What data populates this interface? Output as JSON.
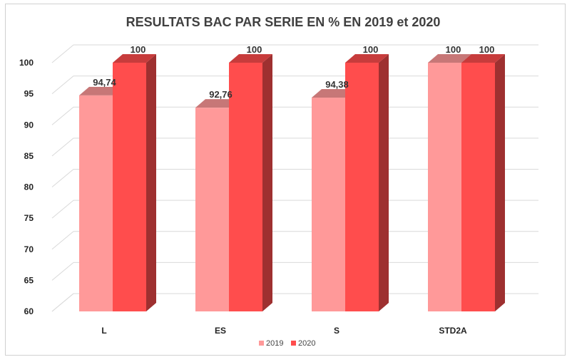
{
  "chart_data": {
    "type": "bar",
    "title": "RESULTATS BAC PAR SERIE EN % EN 2019 et 2020",
    "categories": [
      "L",
      "ES",
      "S",
      "STD2A"
    ],
    "series": [
      {
        "name": "2019",
        "values": [
          94.74,
          92.76,
          94.38,
          100
        ],
        "labels": [
          "94,74",
          "92,76",
          "94,38",
          "100"
        ],
        "color": "#ff9999"
      },
      {
        "name": "2020",
        "values": [
          100,
          100,
          100,
          100
        ],
        "labels": [
          "100",
          "100",
          "100",
          "100"
        ],
        "color": "#ff4d4d"
      }
    ],
    "ylim": [
      60,
      100
    ],
    "yticks": [
      "60",
      "65",
      "70",
      "75",
      "80",
      "85",
      "90",
      "95",
      "100"
    ],
    "xlabel": "",
    "ylabel": "",
    "grid": true,
    "legend": "bottom",
    "style": "3d-column"
  }
}
